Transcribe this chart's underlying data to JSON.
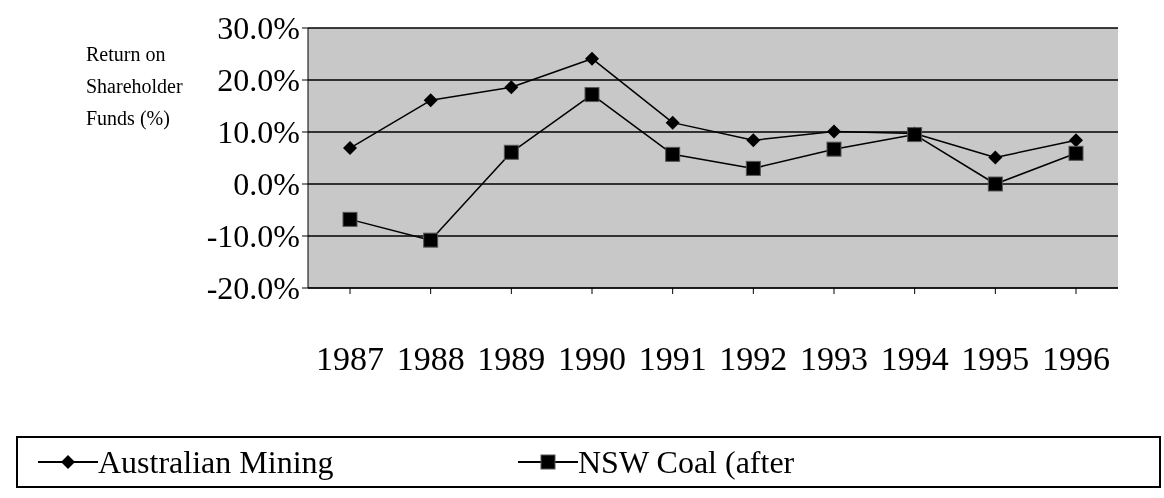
{
  "chart_data": {
    "type": "line",
    "ylabel": "Return on Shareholder Funds (%)",
    "categories": [
      "1987",
      "1988",
      "1989",
      "1990",
      "1991",
      "1992",
      "1993",
      "1994",
      "1995",
      "1996"
    ],
    "series": [
      {
        "name": "Australian Mining",
        "color": "#000000",
        "marker": "diamond",
        "values": [
          6.9,
          16.1,
          18.6,
          24.1,
          11.8,
          8.4,
          10.1,
          9.7,
          5.1,
          8.4
        ]
      },
      {
        "name": "NSW Coal (after",
        "color": "#000000",
        "marker": "square",
        "values": [
          -6.8,
          -10.8,
          6.1,
          17.2,
          5.7,
          3.0,
          6.7,
          9.5,
          0.0,
          5.9
        ]
      }
    ],
    "ylim": [
      -20,
      30
    ],
    "yticks": [
      {
        "value": -20,
        "label": "-20.0%"
      },
      {
        "value": -10,
        "label": "-10.0%"
      },
      {
        "value": 0,
        "label": "0.0%"
      },
      {
        "value": 10,
        "label": "10.0%"
      },
      {
        "value": 20,
        "label": "20.0%"
      },
      {
        "value": 30,
        "label": "30.0%"
      }
    ],
    "grid": "y",
    "legend": "bottom",
    "line_style": "solid"
  }
}
